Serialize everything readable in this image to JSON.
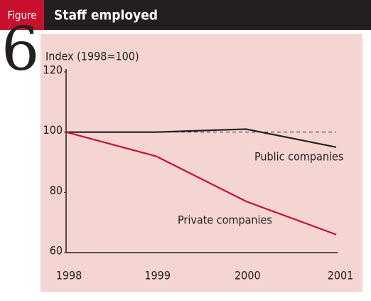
{
  "header": {
    "badge": "Figure",
    "number": "6"
  },
  "chart_data": {
    "type": "line",
    "title": "Staff employed",
    "ylabel": "Index (1998=100)",
    "categories": [
      "1998",
      "1999",
      "2000",
      "2001"
    ],
    "series": [
      {
        "name": "Public companies",
        "color": "#231f20",
        "values": [
          100,
          100,
          101,
          95
        ]
      },
      {
        "name": "Private companies",
        "color": "#c8102e",
        "values": [
          100,
          92,
          77,
          66
        ]
      }
    ],
    "baseline": 100,
    "ylim": [
      60,
      120
    ],
    "yticks": [
      60,
      80,
      100,
      120
    ]
  }
}
